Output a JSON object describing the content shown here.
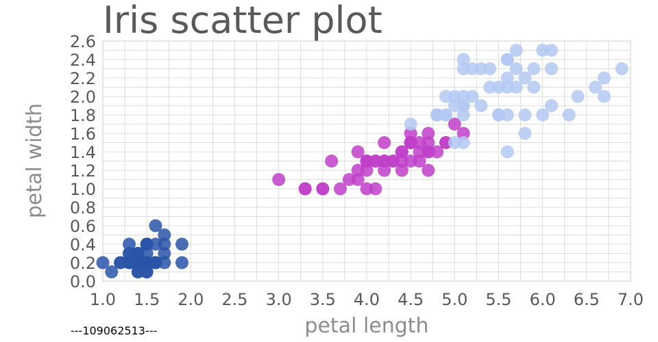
{
  "chart_data": {
    "type": "scatter",
    "title": "Iris scatter plot",
    "xlabel": "petal length",
    "ylabel": "petal width",
    "caption": "---109062513---",
    "xlim": [
      1.0,
      7.0
    ],
    "ylim": [
      0.0,
      2.6
    ],
    "xticks": [
      "1.0",
      "1.5",
      "2.0",
      "2.5",
      "3.0",
      "3.5",
      "4.0",
      "4.5",
      "5.0",
      "5.5",
      "6.0",
      "6.5",
      "7.0"
    ],
    "yticks": [
      "0.0",
      "0.2",
      "0.4",
      "0.6",
      "0.8",
      "1.0",
      "1.2",
      "1.4",
      "1.6",
      "1.8",
      "2.0",
      "2.2",
      "2.4",
      "2.6"
    ],
    "grid": true,
    "legend": "none",
    "series": [
      {
        "color": "#2a55a8",
        "points": [
          [
            1.4,
            0.2
          ],
          [
            1.4,
            0.2
          ],
          [
            1.3,
            0.2
          ],
          [
            1.5,
            0.2
          ],
          [
            1.4,
            0.2
          ],
          [
            1.7,
            0.4
          ],
          [
            1.4,
            0.3
          ],
          [
            1.5,
            0.2
          ],
          [
            1.4,
            0.2
          ],
          [
            1.5,
            0.1
          ],
          [
            1.5,
            0.2
          ],
          [
            1.6,
            0.2
          ],
          [
            1.4,
            0.1
          ],
          [
            1.1,
            0.1
          ],
          [
            1.2,
            0.2
          ],
          [
            1.5,
            0.4
          ],
          [
            1.3,
            0.4
          ],
          [
            1.4,
            0.3
          ],
          [
            1.7,
            0.3
          ],
          [
            1.5,
            0.3
          ],
          [
            1.7,
            0.2
          ],
          [
            1.5,
            0.4
          ],
          [
            1.0,
            0.2
          ],
          [
            1.7,
            0.5
          ],
          [
            1.9,
            0.2
          ],
          [
            1.6,
            0.2
          ],
          [
            1.6,
            0.4
          ],
          [
            1.5,
            0.2
          ],
          [
            1.4,
            0.2
          ],
          [
            1.6,
            0.2
          ],
          [
            1.6,
            0.2
          ],
          [
            1.5,
            0.4
          ],
          [
            1.5,
            0.1
          ],
          [
            1.4,
            0.2
          ],
          [
            1.5,
            0.2
          ],
          [
            1.2,
            0.2
          ],
          [
            1.3,
            0.2
          ],
          [
            1.4,
            0.1
          ],
          [
            1.3,
            0.2
          ],
          [
            1.5,
            0.2
          ],
          [
            1.3,
            0.3
          ],
          [
            1.3,
            0.3
          ],
          [
            1.3,
            0.2
          ],
          [
            1.6,
            0.6
          ],
          [
            1.9,
            0.4
          ],
          [
            1.4,
            0.3
          ],
          [
            1.6,
            0.2
          ],
          [
            1.4,
            0.2
          ],
          [
            1.5,
            0.2
          ],
          [
            1.4,
            0.2
          ]
        ]
      },
      {
        "color": "#bf3fc9",
        "points": [
          [
            4.7,
            1.4
          ],
          [
            4.5,
            1.5
          ],
          [
            4.9,
            1.5
          ],
          [
            4.0,
            1.3
          ],
          [
            4.6,
            1.5
          ],
          [
            4.5,
            1.3
          ],
          [
            4.7,
            1.6
          ],
          [
            3.3,
            1.0
          ],
          [
            4.6,
            1.3
          ],
          [
            3.9,
            1.4
          ],
          [
            3.5,
            1.0
          ],
          [
            4.2,
            1.5
          ],
          [
            4.0,
            1.0
          ],
          [
            4.7,
            1.4
          ],
          [
            3.6,
            1.3
          ],
          [
            4.4,
            1.4
          ],
          [
            4.5,
            1.5
          ],
          [
            4.1,
            1.0
          ],
          [
            4.5,
            1.5
          ],
          [
            3.9,
            1.1
          ],
          [
            4.8,
            1.8
          ],
          [
            4.0,
            1.3
          ],
          [
            4.9,
            1.5
          ],
          [
            4.7,
            1.2
          ],
          [
            4.3,
            1.3
          ],
          [
            4.4,
            1.4
          ],
          [
            4.8,
            1.4
          ],
          [
            5.0,
            1.7
          ],
          [
            4.5,
            1.5
          ],
          [
            3.5,
            1.0
          ],
          [
            3.8,
            1.1
          ],
          [
            3.7,
            1.0
          ],
          [
            3.9,
            1.2
          ],
          [
            5.1,
            1.6
          ],
          [
            4.5,
            1.5
          ],
          [
            4.5,
            1.6
          ],
          [
            4.7,
            1.5
          ],
          [
            4.4,
            1.3
          ],
          [
            4.1,
            1.3
          ],
          [
            4.0,
            1.3
          ],
          [
            4.4,
            1.2
          ],
          [
            4.6,
            1.4
          ],
          [
            4.0,
            1.2
          ],
          [
            3.3,
            1.0
          ],
          [
            4.2,
            1.3
          ],
          [
            4.2,
            1.2
          ],
          [
            4.2,
            1.3
          ],
          [
            4.3,
            1.3
          ],
          [
            3.0,
            1.1
          ],
          [
            4.1,
            1.3
          ]
        ]
      },
      {
        "color": "#b3c9f3",
        "points": [
          [
            6.0,
            2.5
          ],
          [
            5.1,
            1.9
          ],
          [
            5.9,
            2.1
          ],
          [
            5.6,
            1.8
          ],
          [
            5.8,
            2.2
          ],
          [
            6.6,
            2.1
          ],
          [
            4.5,
            1.7
          ],
          [
            6.3,
            1.8
          ],
          [
            5.8,
            1.8
          ],
          [
            6.1,
            2.5
          ],
          [
            5.1,
            2.0
          ],
          [
            5.3,
            1.9
          ],
          [
            5.5,
            2.1
          ],
          [
            5.0,
            2.0
          ],
          [
            5.1,
            2.4
          ],
          [
            5.3,
            2.3
          ],
          [
            5.5,
            1.8
          ],
          [
            6.7,
            2.2
          ],
          [
            6.9,
            2.3
          ],
          [
            5.0,
            1.5
          ],
          [
            5.7,
            2.3
          ],
          [
            4.9,
            2.0
          ],
          [
            6.7,
            2.0
          ],
          [
            4.9,
            1.8
          ],
          [
            5.7,
            2.1
          ],
          [
            6.0,
            1.8
          ],
          [
            4.8,
            1.8
          ],
          [
            4.9,
            1.8
          ],
          [
            5.6,
            2.1
          ],
          [
            5.8,
            1.6
          ],
          [
            6.1,
            1.9
          ],
          [
            6.4,
            2.0
          ],
          [
            5.6,
            2.2
          ],
          [
            5.1,
            1.5
          ],
          [
            5.6,
            1.4
          ],
          [
            6.1,
            2.3
          ],
          [
            5.6,
            2.4
          ],
          [
            5.5,
            1.8
          ],
          [
            4.8,
            1.8
          ],
          [
            5.4,
            2.1
          ],
          [
            5.6,
            2.4
          ],
          [
            5.1,
            2.3
          ],
          [
            5.1,
            1.9
          ],
          [
            5.9,
            2.3
          ],
          [
            5.7,
            2.5
          ],
          [
            5.2,
            2.3
          ],
          [
            5.0,
            1.9
          ],
          [
            5.2,
            2.0
          ],
          [
            5.4,
            2.3
          ],
          [
            5.1,
            1.8
          ]
        ]
      }
    ]
  }
}
